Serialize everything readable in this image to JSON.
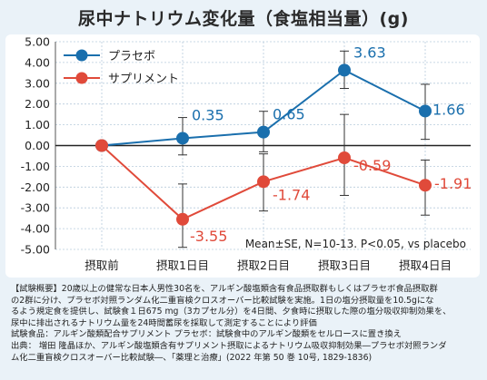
{
  "title": "尿中ナトリウム変化量（食塩相当量）(g)",
  "colors": {
    "placebo": "#1a6fad",
    "supplement": "#e04a3a",
    "zero_line": "#222222",
    "grid": "#b7cbdc"
  },
  "annotation": "Mean±SE, N=10-13. P<0.05, vs placebo",
  "chart_data": {
    "type": "line",
    "categories": [
      "摂取前",
      "摂取1日目",
      "摂取2日目",
      "摂取3日目",
      "摂取4日目"
    ],
    "ylim": [
      -5.0,
      5.0
    ],
    "yticks": [
      5.0,
      4.0,
      3.0,
      2.0,
      1.0,
      0.0,
      -1.0,
      -2.0,
      -3.0,
      -4.0,
      -5.0
    ],
    "ytick_labels": [
      "5.00",
      "4.00",
      "3.00",
      "2.00",
      "1.00",
      "0.00",
      "-1.00",
      "-2.00",
      "-3.00",
      "-4.00",
      "-5.00"
    ],
    "grid": true,
    "legend": "top-left",
    "series": [
      {
        "name": "プラセボ",
        "color": "#1a6fad",
        "values": [
          0.0,
          0.35,
          0.65,
          3.63,
          1.66
        ],
        "labels": [
          "",
          "0.35",
          "0.65",
          "3.63",
          "1.66"
        ],
        "err_low": [
          null,
          -0.45,
          -0.3,
          2.75,
          0.3
        ],
        "err_high": [
          null,
          1.35,
          1.65,
          4.55,
          2.95
        ]
      },
      {
        "name": "サプリメント",
        "color": "#e04a3a",
        "values": [
          0.0,
          -3.55,
          -1.74,
          -0.59,
          -1.91
        ],
        "labels": [
          "",
          "-3.55",
          "-1.74",
          "-0.59",
          "-1.91"
        ],
        "err_low": [
          null,
          -4.9,
          -3.15,
          -2.4,
          -3.35
        ],
        "err_high": [
          null,
          -1.85,
          -0.4,
          1.5,
          -0.7
        ]
      }
    ]
  },
  "notes": [
    "【試験概要】20歳以上の健常な日本人男性30名を、アルギン酸塩類含有食品摂取群もしくはプラセボ食品摂取群",
    "の2群に分け、プラセボ対照ランダム化二重盲検クロスオーバー比較試験を実施。1日の塩分摂取量を10.5gにな",
    "るよう規定食を提供し、試験食１日675 mg（3カプセル分）を4日間、夕食時に摂取した際の塩分吸収抑制効果を、",
    "尿中に排出されるナトリウム量を24時間蓄尿を採取して測定することにより評価",
    "試験食品：アルギン酸類配合サプリメント  プラセボ：試験食中のアルギン酸類をセルロースに置き換え",
    "出典：  増田  隆晶ほか、アルギン酸塩類含有サプリメント摂取によるナトリウム吸収抑制効果―プラセボ対照ランダ",
    "ム化二重盲検クロスオーバー比較試験―、「薬理と治療」(2022 年第 50 巻 10号, 1829-1836)"
  ]
}
